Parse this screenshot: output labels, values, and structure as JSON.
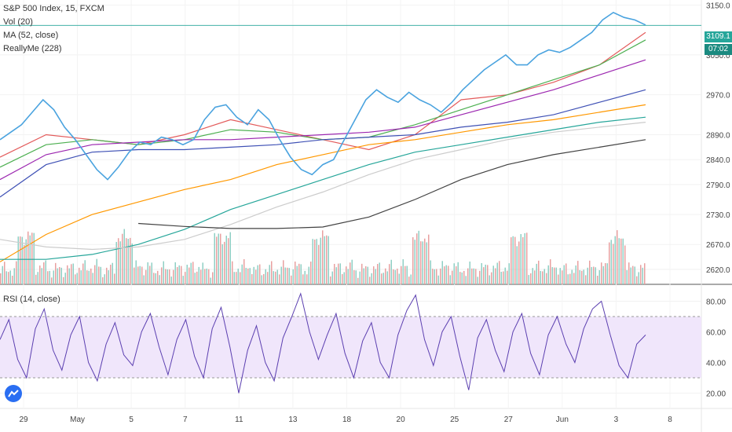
{
  "legend": {
    "title": "S&P 500 Index, 15, FXCM",
    "vol": "Vol (20)",
    "ma": "MA (52, close)",
    "indicator": "ReallyMe (228)"
  },
  "rsi_legend": "RSI (14, close)",
  "last_price": "3109.1",
  "countdown": "07:02",
  "colors": {
    "accent": "#26a69a",
    "rsi_line": "#5b3fb0",
    "rsi_band": "#f0e6fb"
  },
  "chart_data": [
    {
      "type": "line",
      "title": "S&P 500 Index, 15, FXCM",
      "x_ticks": [
        "29",
        "May",
        "5",
        "7",
        "11",
        "13",
        "18",
        "20",
        "25",
        "27",
        "Jun",
        "3",
        "8"
      ],
      "y_ticks": [
        "3150.0",
        "3050.0",
        "2970.0",
        "2890.0",
        "2840.0",
        "2790.0",
        "2730.0",
        "2670.0",
        "2620.0"
      ],
      "ylim": [
        2590,
        3160
      ],
      "price": [
        2880,
        2895,
        2910,
        2935,
        2960,
        2940,
        2905,
        2880,
        2850,
        2820,
        2800,
        2825,
        2855,
        2875,
        2870,
        2885,
        2880,
        2870,
        2880,
        2920,
        2945,
        2950,
        2925,
        2910,
        2940,
        2920,
        2880,
        2845,
        2820,
        2810,
        2830,
        2840,
        2880,
        2920,
        2960,
        2980,
        2965,
        2955,
        2975,
        2960,
        2950,
        2935,
        2955,
        2980,
        3000,
        3020,
        3035,
        3050,
        3030,
        3030,
        3050,
        3060,
        3055,
        3065,
        3080,
        3095,
        3120,
        3135,
        3125,
        3120,
        3110
      ],
      "ma_lines": [
        {
          "color": "#e35b5b",
          "values": [
            2845,
            2890,
            2880,
            2870,
            2890,
            2920,
            2900,
            2880,
            2860,
            2890,
            2960,
            2970,
            2995,
            3030,
            3095
          ]
        },
        {
          "color": "#4caf50",
          "values": [
            2825,
            2870,
            2880,
            2870,
            2880,
            2900,
            2895,
            2880,
            2885,
            2910,
            2940,
            2970,
            3000,
            3030,
            3080
          ]
        },
        {
          "color": "#9c27b0",
          "values": [
            2800,
            2850,
            2870,
            2875,
            2880,
            2880,
            2885,
            2890,
            2895,
            2905,
            2930,
            2955,
            2980,
            3010,
            3040
          ]
        },
        {
          "color": "#3f51b5",
          "values": [
            2765,
            2830,
            2855,
            2860,
            2860,
            2865,
            2870,
            2880,
            2885,
            2890,
            2905,
            2915,
            2930,
            2955,
            2980
          ]
        },
        {
          "color": "#ff9800",
          "values": [
            2635,
            2690,
            2730,
            2755,
            2780,
            2800,
            2830,
            2850,
            2870,
            2880,
            2895,
            2910,
            2920,
            2935,
            2950
          ]
        },
        {
          "color": "#26a69a",
          "values": [
            2640,
            2640,
            2650,
            2670,
            2700,
            2740,
            2770,
            2800,
            2830,
            2855,
            2870,
            2885,
            2900,
            2915,
            2925
          ]
        },
        {
          "color": "#cccccc",
          "values": [
            2680,
            2665,
            2660,
            2665,
            2680,
            2710,
            2745,
            2775,
            2810,
            2840,
            2860,
            2880,
            2895,
            2905,
            2915
          ]
        },
        {
          "color": "#424242",
          "values": [
            null,
            null,
            null,
            2712,
            2706,
            2702,
            2702,
            2705,
            2725,
            2760,
            2800,
            2830,
            2850,
            2865,
            2880
          ]
        }
      ]
    },
    {
      "type": "line",
      "title": "RSI (14, close)",
      "y_ticks": [
        "80.00",
        "60.00",
        "40.00",
        "20.00"
      ],
      "ylim": [
        10,
        90
      ],
      "band": [
        30,
        70
      ],
      "values": [
        55,
        68,
        42,
        30,
        62,
        75,
        48,
        35,
        58,
        70,
        40,
        28,
        52,
        66,
        45,
        38,
        60,
        72,
        50,
        32,
        55,
        68,
        44,
        30,
        62,
        76,
        50,
        20,
        48,
        64,
        40,
        28,
        56,
        70,
        85,
        60,
        42,
        58,
        72,
        46,
        30,
        54,
        66,
        40,
        30,
        58,
        74,
        84,
        55,
        38,
        60,
        70,
        44,
        22,
        56,
        68,
        48,
        34,
        60,
        72,
        46,
        32,
        58,
        70,
        52,
        40,
        62,
        75,
        80,
        58,
        38,
        30,
        52,
        58
      ]
    }
  ]
}
